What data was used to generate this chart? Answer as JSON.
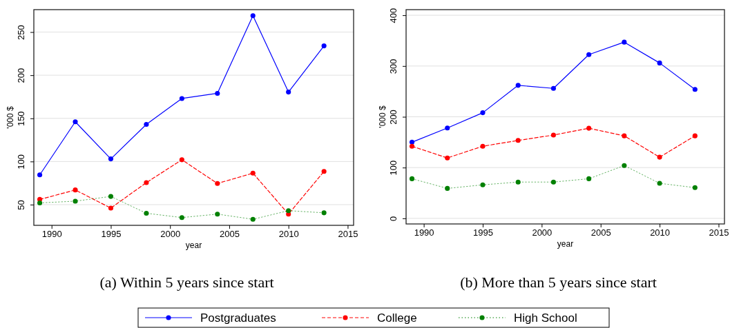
{
  "chart_data": [
    {
      "type": "line",
      "title": "(a) Within 5 years since start",
      "xlabel": "year",
      "ylabel": "'000 $",
      "x": [
        1989,
        1992,
        1995,
        1998,
        2001,
        2004,
        2007,
        2010,
        2013
      ],
      "xlim": [
        1988.5,
        2015.5
      ],
      "xticks": [
        1990,
        1995,
        2000,
        2005,
        2010,
        2015
      ],
      "ylim": [
        26,
        276
      ],
      "yticks": [
        50,
        100,
        150,
        200,
        250
      ],
      "grid": "y",
      "marker": "circle",
      "legend": "bottom",
      "series": [
        {
          "name": "Postgraduates",
          "color": "#0000ff",
          "line_style": "solid",
          "values": [
            84.5,
            146,
            103,
            143,
            173,
            179,
            269,
            180.5,
            234
          ]
        },
        {
          "name": "College",
          "color": "#ff0000",
          "line_style": "dashed",
          "values": [
            56,
            67,
            46,
            75.5,
            102,
            74.5,
            86.5,
            39,
            88.5
          ]
        },
        {
          "name": "High School",
          "color": "#008000",
          "line_style": "dotted",
          "values": [
            52,
            54,
            59.5,
            40,
            35,
            39,
            33,
            43,
            40.5
          ]
        }
      ]
    },
    {
      "type": "line",
      "title": "(b) More than 5 years since start",
      "xlabel": "year",
      "ylabel": "'000 $",
      "x": [
        1989,
        1992,
        1995,
        1998,
        2001,
        2004,
        2007,
        2010,
        2013
      ],
      "xlim": [
        1988.5,
        2015.5
      ],
      "xticks": [
        1990,
        1995,
        2000,
        2005,
        2010,
        2015
      ],
      "ylim": [
        -11,
        411
      ],
      "yticks": [
        0,
        100,
        200,
        300,
        400
      ],
      "grid": "y",
      "marker": "circle",
      "series": [
        {
          "color": "#0000ff",
          "line_style": "solid",
          "values": [
            150,
            178,
            208,
            262,
            256,
            322.5,
            347,
            306,
            254
          ]
        },
        {
          "color": "#ff0000",
          "line_style": "dashed",
          "values": [
            142,
            119,
            142,
            153.5,
            164,
            177.5,
            162.5,
            120.5,
            162.5
          ]
        },
        {
          "color": "#008000",
          "line_style": "dotted",
          "values": [
            78,
            59,
            66,
            71.5,
            71.5,
            78,
            104,
            69,
            60.5
          ]
        }
      ]
    }
  ]
}
